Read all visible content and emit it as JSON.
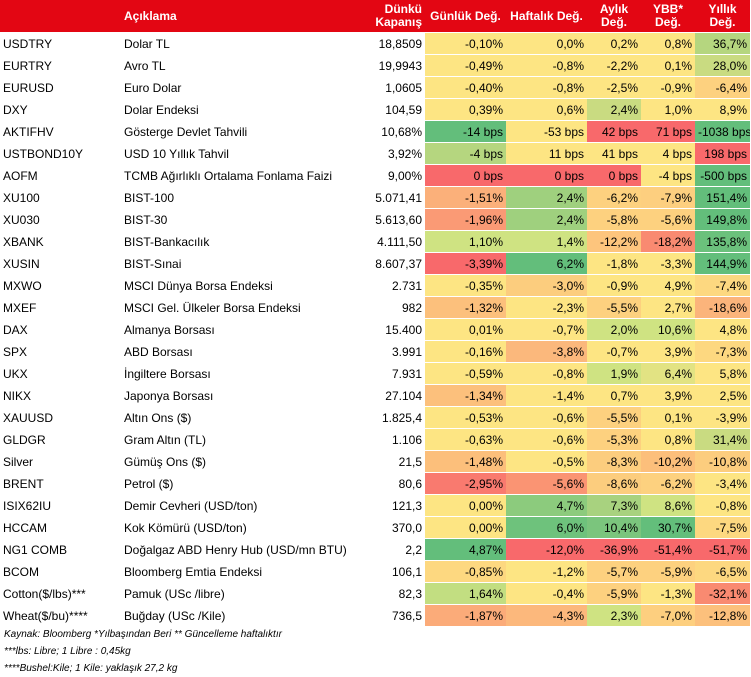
{
  "headers": [
    "",
    "Açıklama",
    "Dünkü Kapanış",
    "Günlük Değ.",
    "Haftalık Değ.",
    "Aylık Değ.",
    "YBB* Değ.",
    "Yıllık Değ."
  ],
  "rows": [
    {
      "code": "USDTRY",
      "desc": "Dolar TL",
      "close": "18,8509",
      "vals": [
        "-0,10%",
        "0,0%",
        "0,2%",
        "0,8%",
        "36,7%"
      ],
      "colors": [
        "#fde583",
        "#fde583",
        "#fde583",
        "#fde583",
        "#b5d67f"
      ]
    },
    {
      "code": "EURTRY",
      "desc": "Avro TL",
      "close": "19,9943",
      "vals": [
        "-0,49%",
        "-0,8%",
        "-2,2%",
        "0,1%",
        "28,0%"
      ],
      "colors": [
        "#fde583",
        "#fde583",
        "#fde583",
        "#fde583",
        "#c9db81"
      ]
    },
    {
      "code": "EURUSD",
      "desc": "Euro Dolar",
      "close": "1,0605",
      "vals": [
        "-0,40%",
        "-0,8%",
        "-2,5%",
        "-0,9%",
        "-6,4%"
      ],
      "colors": [
        "#fde583",
        "#fde583",
        "#fde583",
        "#fde583",
        "#fdd17f"
      ]
    },
    {
      "code": "DXY",
      "desc": "Dolar Endeksi",
      "close": "104,59",
      "vals": [
        "0,39%",
        "0,6%",
        "2,4%",
        "1,0%",
        "8,9%"
      ],
      "colors": [
        "#fde583",
        "#fde583",
        "#c9db81",
        "#fde583",
        "#fde583"
      ]
    },
    {
      "code": "AKTIFHV",
      "desc": "Gösterge Devlet Tahvili",
      "close": "10,68%",
      "vals": [
        "-14 bps",
        "-53 bps",
        "42 bps",
        "71 bps",
        "-1038 bps"
      ],
      "colors": [
        "#63be7b",
        "#fde583",
        "#f8696b",
        "#f8696b",
        "#63be7b"
      ]
    },
    {
      "code": "USTBOND10Y",
      "desc": "USD 10 Yıllık Tahvil",
      "close": "3,92%",
      "vals": [
        "-4 bps",
        "11 bps",
        "41 bps",
        "4 bps",
        "198 bps"
      ],
      "colors": [
        "#b5d67f",
        "#fde583",
        "#fde583",
        "#fde583",
        "#f8696b"
      ]
    },
    {
      "code": "AOFM",
      "desc": "TCMB Ağırlıklı Ortalama Fonlama Faizi",
      "close": "9,00%",
      "vals": [
        "0 bps",
        "0 bps",
        "0 bps",
        "-4 bps",
        "-500 bps"
      ],
      "colors": [
        "#f8696b",
        "#f8696b",
        "#f8696b",
        "#fde583",
        "#63be7b"
      ]
    },
    {
      "code": "XU100",
      "desc": "BIST-100",
      "close": "5.071,41",
      "vals": [
        "-1,51%",
        "2,4%",
        "-6,2%",
        "-7,9%",
        "151,4%"
      ],
      "colors": [
        "#fbb07a",
        "#9fd07e",
        "#fdd17f",
        "#fdcf7f",
        "#63be7b"
      ]
    },
    {
      "code": "XU030",
      "desc": "BIST-30",
      "close": "5.613,60",
      "vals": [
        "-1,96%",
        "2,4%",
        "-5,8%",
        "-5,6%",
        "149,8%"
      ],
      "colors": [
        "#fa9a75",
        "#9fd07e",
        "#fdd17f",
        "#fdd17f",
        "#63be7b"
      ]
    },
    {
      "code": "XBANK",
      "desc": "BIST-Bankacılık",
      "close": "4.111,50",
      "vals": [
        "1,10%",
        "1,4%",
        "-12,2%",
        "-18,2%",
        "135,8%"
      ],
      "colors": [
        "#cfe382",
        "#cfe382",
        "#fdc57d",
        "#f98a71",
        "#6bc17c"
      ]
    },
    {
      "code": "XUSIN",
      "desc": "BIST-Sınai",
      "close": "8.607,37",
      "vals": [
        "-3,39%",
        "6,2%",
        "-1,8%",
        "-3,3%",
        "144,9%"
      ],
      "colors": [
        "#f8696b",
        "#63be7b",
        "#fde583",
        "#fde583",
        "#63be7b"
      ]
    },
    {
      "code": "MXWO",
      "desc": "MSCI Dünya Borsa Endeksi",
      "close": "2.731",
      "vals": [
        "-0,35%",
        "-3,0%",
        "-0,9%",
        "4,9%",
        "-7,4%"
      ],
      "colors": [
        "#fde583",
        "#fccd7e",
        "#fde583",
        "#fde583",
        "#fdd880"
      ]
    },
    {
      "code": "MXEF",
      "desc": "MSCI Gel. Ülkeler Borsa Endeksi",
      "close": "982",
      "vals": [
        "-1,32%",
        "-2,3%",
        "-5,5%",
        "2,7%",
        "-18,6%"
      ],
      "colors": [
        "#fcc07c",
        "#fde583",
        "#fdd17f",
        "#fde583",
        "#fbb47b"
      ]
    },
    {
      "code": "DAX",
      "desc": "Almanya Borsası",
      "close": "15.400",
      "vals": [
        "0,01%",
        "-0,7%",
        "2,0%",
        "10,6%",
        "4,8%"
      ],
      "colors": [
        "#fde583",
        "#fde583",
        "#cfe382",
        "#cfe382",
        "#fde583"
      ]
    },
    {
      "code": "SPX",
      "desc": "ABD Borsası",
      "close": "3.991",
      "vals": [
        "-0,16%",
        "-3,8%",
        "-0,7%",
        "3,9%",
        "-7,3%"
      ],
      "colors": [
        "#fde583",
        "#fbb87c",
        "#fde583",
        "#fde583",
        "#fdd880"
      ]
    },
    {
      "code": "UKX",
      "desc": "İngiltere Borsası",
      "close": "7.931",
      "vals": [
        "-0,59%",
        "-0,8%",
        "1,9%",
        "6,4%",
        "5,8%"
      ],
      "colors": [
        "#fde583",
        "#fde583",
        "#cfe382",
        "#e2e383",
        "#fde583"
      ]
    },
    {
      "code": "NIKX",
      "desc": "Japonya Borsası",
      "close": "27.104",
      "vals": [
        "-1,34%",
        "-1,4%",
        "0,7%",
        "3,9%",
        "2,5%"
      ],
      "colors": [
        "#fcc07c",
        "#fde583",
        "#fde583",
        "#fde583",
        "#fde583"
      ]
    },
    {
      "code": "XAUUSD",
      "desc": "Altın Ons ($)",
      "close": "1.825,4",
      "vals": [
        "-0,53%",
        "-0,6%",
        "-5,5%",
        "0,1%",
        "-3,9%"
      ],
      "colors": [
        "#fde583",
        "#fde583",
        "#fdd17f",
        "#fde583",
        "#fde583"
      ]
    },
    {
      "code": "GLDGR",
      "desc": "Gram Altın (TL)",
      "close": "1.106",
      "vals": [
        "-0,63%",
        "-0,6%",
        "-5,3%",
        "0,8%",
        "31,4%"
      ],
      "colors": [
        "#fde583",
        "#fde583",
        "#fdd17f",
        "#fde583",
        "#c9db81"
      ]
    },
    {
      "code": "Silver",
      "desc": "Gümüş Ons ($)",
      "close": "21,5",
      "vals": [
        "-1,48%",
        "-0,5%",
        "-8,3%",
        "-10,2%",
        "-10,8%"
      ],
      "colors": [
        "#fcbf7b",
        "#fde583",
        "#fccd7e",
        "#fcbf7b",
        "#fccd7e"
      ]
    },
    {
      "code": "BRENT",
      "desc": "Petrol ($)",
      "close": "80,6",
      "vals": [
        "-2,95%",
        "-5,6%",
        "-8,6%",
        "-6,2%",
        "-3,4%"
      ],
      "colors": [
        "#f97a6f",
        "#fa9473",
        "#fccd7e",
        "#fdd17f",
        "#fde583"
      ]
    },
    {
      "code": "ISIX62IU",
      "desc": "Demir Cevheri (USD/ton)",
      "close": "121,3",
      "vals": [
        "0,00%",
        "4,7%",
        "7,3%",
        "8,6%",
        "-0,8%"
      ],
      "colors": [
        "#fde583",
        "#8ccb7d",
        "#a8d27f",
        "#cfe382",
        "#fde583"
      ]
    },
    {
      "code": "HCCAM",
      "desc": "Kok Kömürü (USD/ton)",
      "close": "370,0",
      "vals": [
        "0,00%",
        "6,0%",
        "10,4%",
        "30,7%",
        "-7,5%"
      ],
      "colors": [
        "#fde583",
        "#6ec27c",
        "#7bc57d",
        "#63be7b",
        "#fdd880"
      ]
    },
    {
      "code": "NG1 COMB",
      "desc": "Doğalgaz ABD Henry Hub (USD/mn BTU)",
      "close": "2,2",
      "vals": [
        "4,87%",
        "-12,0%",
        "-36,9%",
        "-51,4%",
        "-51,7%"
      ],
      "colors": [
        "#63be7b",
        "#f8696b",
        "#f8696b",
        "#f8696b",
        "#f8696b"
      ]
    },
    {
      "code": "BCOM",
      "desc": "Bloomberg Emtia Endeksi",
      "close": "106,1",
      "vals": [
        "-0,85%",
        "-1,2%",
        "-5,7%",
        "-5,9%",
        "-6,5%"
      ],
      "colors": [
        "#fdd880",
        "#fde583",
        "#fdd17f",
        "#fdd17f",
        "#fdd880"
      ]
    },
    {
      "code": "Cotton($/lbs)***",
      "desc": "Pamuk (USc /libre)",
      "close": "82,3",
      "vals": [
        "1,64%",
        "-0,4%",
        "-5,9%",
        "-1,3%",
        "-32,1%"
      ],
      "colors": [
        "#c2de81",
        "#fde583",
        "#fdd17f",
        "#fde583",
        "#f98a71"
      ]
    },
    {
      "code": "Wheat($/bu)****",
      "desc": "Buğday (USc /Kile)",
      "close": "736,5",
      "vals": [
        "-1,87%",
        "-4,3%",
        "2,3%",
        "-7,0%",
        "-12,8%"
      ],
      "colors": [
        "#fbab79",
        "#fcb87c",
        "#cfe382",
        "#fdcf7f",
        "#fcc07c"
      ]
    }
  ],
  "footer": [
    "Kaynak: Bloomberg *Yılbaşından Beri  ** Güncelleme haftalıktır",
    "***lbs: Libre; 1 Libre : 0,45kg",
    "****Bushel:Kile; 1 Kile: yaklaşık 27,2 kg"
  ]
}
